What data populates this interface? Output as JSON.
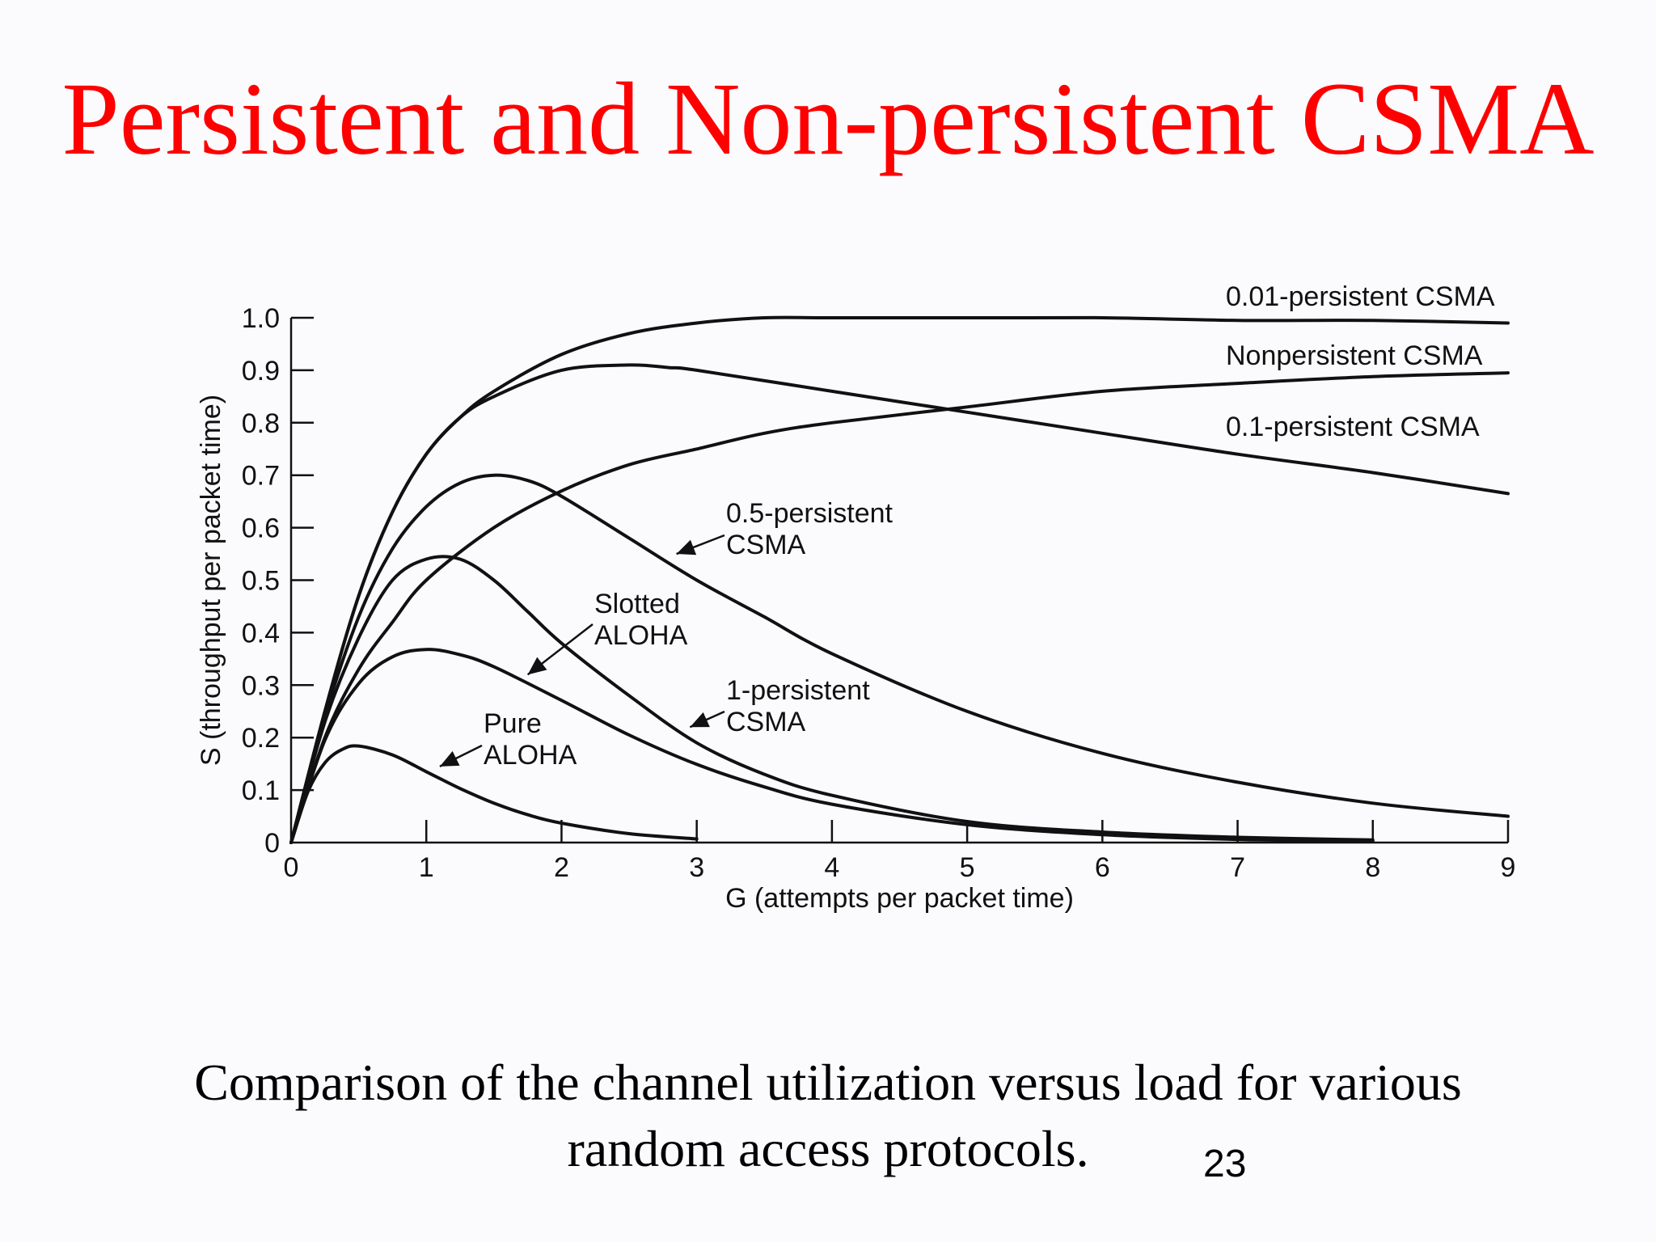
{
  "slide": {
    "title": "Persistent and Non-persistent CSMA",
    "caption_line1": "Comparison of the channel utilization versus load for various",
    "caption_line2": "random access protocols.",
    "page_number": "23"
  },
  "chart_data": {
    "type": "line",
    "xlabel": "G (attempts per packet time)",
    "ylabel": "S (throughput per packet time)",
    "xlim": [
      0,
      9
    ],
    "ylim": [
      0,
      1.0
    ],
    "xticks": [
      "0",
      "1",
      "2",
      "3",
      "4",
      "5",
      "6",
      "7",
      "8",
      "9"
    ],
    "yticks": [
      "0",
      "0.1",
      "0.2",
      "0.3",
      "0.4",
      "0.5",
      "0.6",
      "0.7",
      "0.8",
      "0.9",
      "1.0"
    ],
    "grid": false,
    "line_color": "#111111",
    "series": [
      {
        "name": "0.01-persistent CSMA",
        "label_lines": [
          "0.01-persistent CSMA"
        ],
        "x": [
          0,
          0.25,
          0.5,
          0.75,
          1,
          1.25,
          1.5,
          2,
          2.5,
          3,
          3.5,
          4,
          5,
          6,
          7,
          8,
          9
        ],
        "y": [
          0,
          0.25,
          0.47,
          0.63,
          0.74,
          0.81,
          0.86,
          0.93,
          0.97,
          0.99,
          1.0,
          1.0,
          1.0,
          1.0,
          0.995,
          0.995,
          0.99
        ]
      },
      {
        "name": "Nonpersistent CSMA",
        "label_lines": [
          "Nonpersistent CSMA"
        ],
        "x": [
          0,
          0.25,
          0.5,
          0.75,
          1,
          1.5,
          2,
          2.5,
          3,
          3.5,
          4,
          5,
          6,
          7,
          8,
          9
        ],
        "y": [
          0,
          0.2,
          0.33,
          0.42,
          0.5,
          0.6,
          0.67,
          0.72,
          0.75,
          0.78,
          0.8,
          0.83,
          0.86,
          0.875,
          0.888,
          0.895
        ]
      },
      {
        "name": "0.1-persistent CSMA",
        "label_lines": [
          "0.1-persistent CSMA"
        ],
        "x": [
          0,
          0.25,
          0.5,
          0.75,
          1,
          1.25,
          1.5,
          2,
          2.5,
          2.8,
          3,
          4,
          5,
          6,
          7,
          8,
          9
        ],
        "y": [
          0,
          0.25,
          0.47,
          0.63,
          0.74,
          0.81,
          0.85,
          0.9,
          0.91,
          0.905,
          0.9,
          0.86,
          0.82,
          0.78,
          0.74,
          0.705,
          0.665
        ]
      },
      {
        "name": "0.5-persistent CSMA",
        "label_lines": [
          "0.5-persistent",
          "CSMA"
        ],
        "x": [
          0,
          0.25,
          0.5,
          0.75,
          1,
          1.25,
          1.5,
          1.75,
          2,
          2.5,
          3,
          3.5,
          4,
          5,
          6,
          7,
          8,
          9
        ],
        "y": [
          0,
          0.24,
          0.43,
          0.56,
          0.64,
          0.685,
          0.7,
          0.69,
          0.66,
          0.58,
          0.5,
          0.43,
          0.36,
          0.25,
          0.17,
          0.115,
          0.075,
          0.05
        ]
      },
      {
        "name": "1-persistent CSMA",
        "label_lines": [
          "1-persistent",
          "CSMA"
        ],
        "x": [
          0,
          0.25,
          0.5,
          0.75,
          1,
          1.25,
          1.5,
          1.75,
          2,
          2.5,
          3,
          3.5,
          4,
          5,
          6,
          7,
          8
        ],
        "y": [
          0,
          0.23,
          0.39,
          0.5,
          0.54,
          0.54,
          0.5,
          0.44,
          0.38,
          0.28,
          0.19,
          0.13,
          0.09,
          0.04,
          0.02,
          0.01,
          0.005
        ]
      },
      {
        "name": "Slotted ALOHA",
        "label_lines": [
          "Slotted",
          "ALOHA"
        ],
        "x": [
          0,
          0.25,
          0.5,
          0.75,
          1,
          1.25,
          1.5,
          2,
          2.5,
          3,
          3.5,
          4,
          5,
          6,
          7,
          8
        ],
        "y": [
          0,
          0.195,
          0.303,
          0.354,
          0.368,
          0.358,
          0.335,
          0.271,
          0.205,
          0.149,
          0.106,
          0.073,
          0.034,
          0.015,
          0.006,
          0.003
        ]
      },
      {
        "name": "Pure ALOHA",
        "label_lines": [
          "Pure",
          "ALOHA"
        ],
        "x": [
          0,
          0.125,
          0.25,
          0.375,
          0.5,
          0.75,
          1,
          1.25,
          1.5,
          1.75,
          2,
          2.5,
          3
        ],
        "y": [
          0,
          0.097,
          0.152,
          0.177,
          0.184,
          0.167,
          0.135,
          0.103,
          0.075,
          0.053,
          0.037,
          0.017,
          0.007
        ]
      }
    ],
    "annotations": [
      {
        "series": "0.5-persistent CSMA",
        "arrow_to": [
          2.85,
          0.55
        ]
      },
      {
        "series": "1-persistent CSMA",
        "arrow_to": [
          2.95,
          0.22
        ]
      },
      {
        "series": "Slotted ALOHA",
        "arrow_to": [
          1.75,
          0.32
        ]
      },
      {
        "series": "Pure ALOHA",
        "arrow_to": [
          1.1,
          0.145
        ]
      }
    ]
  }
}
